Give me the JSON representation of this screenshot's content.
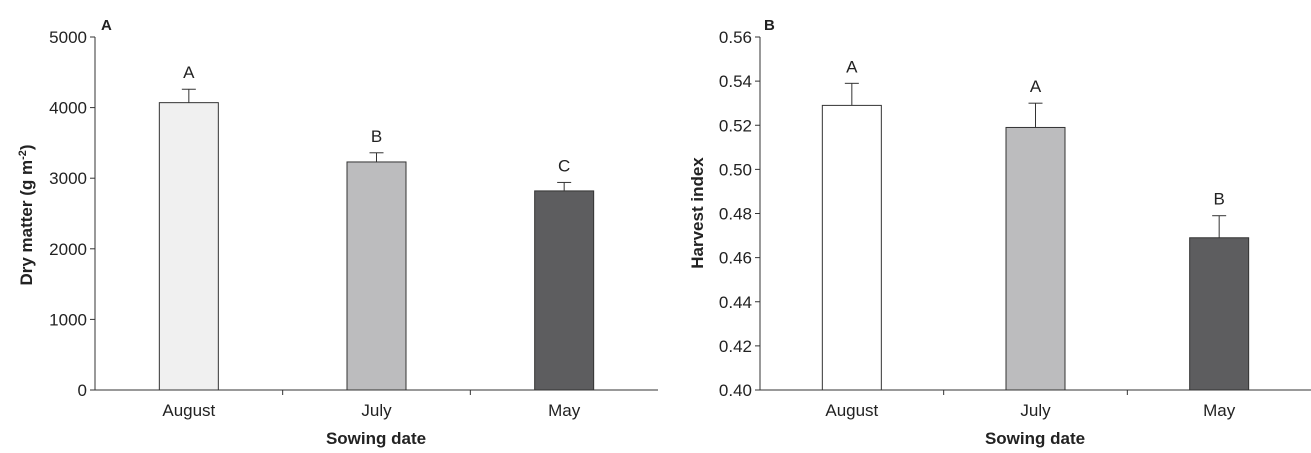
{
  "chart_data": [
    {
      "type": "bar",
      "panel_label": "A",
      "categories": [
        "August",
        "July",
        "May"
      ],
      "values": [
        4070,
        3230,
        2820
      ],
      "errors": [
        190,
        130,
        120
      ],
      "significance": [
        "A",
        "B",
        "C"
      ],
      "bar_colors": [
        "#f0f0f0",
        "#bcbcbe",
        "#5d5d5f"
      ],
      "xlabel": "Sowing date",
      "ylabel": "Dry matter (g m",
      "ylabel_sup": "-2",
      "ylabel_end": ")",
      "ylim": [
        0,
        5000
      ],
      "yticks": [
        0,
        1000,
        2000,
        3000,
        4000,
        5000
      ],
      "ytick_labels": [
        "0",
        "1000",
        "2000",
        "3000",
        "4000",
        "5000"
      ],
      "grid": false,
      "legend": "none"
    },
    {
      "type": "bar",
      "panel_label": "B",
      "categories": [
        "August",
        "July",
        "May"
      ],
      "values": [
        0.529,
        0.519,
        0.469
      ],
      "errors": [
        0.01,
        0.011,
        0.01
      ],
      "significance": [
        "A",
        "A",
        "B"
      ],
      "bar_colors": [
        "#ffffff",
        "#bcbcbe",
        "#5d5d5f"
      ],
      "xlabel": "Sowing date",
      "ylabel": "Harvest index",
      "ylim": [
        0.4,
        0.56
      ],
      "yticks": [
        0.4,
        0.42,
        0.44,
        0.46,
        0.48,
        0.5,
        0.52,
        0.54,
        0.56
      ],
      "ytick_labels": [
        "0.40",
        "0.42",
        "0.44",
        "0.46",
        "0.48",
        "0.50",
        "0.52",
        "0.54",
        "0.56"
      ],
      "grid": false,
      "legend": "none"
    }
  ]
}
